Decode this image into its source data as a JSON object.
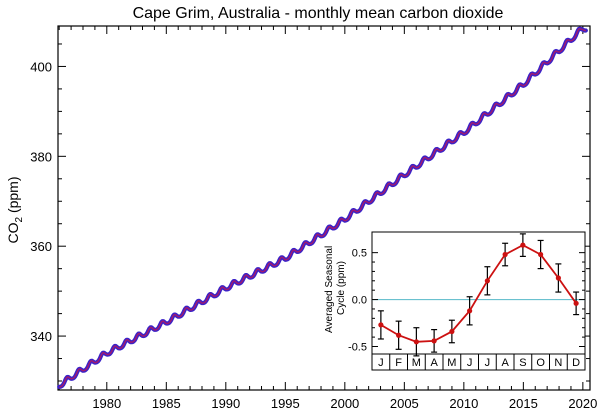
{
  "chart_data": {
    "type": "line",
    "title": "Cape Grim, Australia - monthly mean carbon dioxide",
    "ylabel": {
      "main": "CO",
      "sub": "2",
      "unit": " (ppm)"
    },
    "xlabel": "",
    "xlim": [
      1975.9,
      2020.6
    ],
    "ylim": [
      328,
      409
    ],
    "x_ticks": [
      1980,
      1985,
      1990,
      1995,
      2000,
      2005,
      2010,
      2015,
      2020
    ],
    "y_ticks": [
      340,
      360,
      380,
      400
    ],
    "grid": false,
    "colors": {
      "line_outer": "#3a22c8",
      "line_inner": "#a21a6e",
      "axis": "#000000"
    },
    "trend_anchors": {
      "x": [
        1976.0,
        1980.0,
        1985.0,
        1990.0,
        1995.0,
        2000.0,
        2005.0,
        2010.0,
        2015.0,
        2020.0
      ],
      "y": [
        329.0,
        336.2,
        343.1,
        350.7,
        357.3,
        366.0,
        375.9,
        385.3,
        396.0,
        408.5
      ]
    },
    "inset": {
      "type": "line",
      "ylabel_lines": [
        "Averaged Seasonal",
        "Cycle (ppm)"
      ],
      "months": [
        "J",
        "F",
        "M",
        "A",
        "M",
        "J",
        "J",
        "A",
        "S",
        "O",
        "N",
        "D"
      ],
      "values": [
        -0.27,
        -0.38,
        -0.45,
        -0.44,
        -0.34,
        -0.12,
        0.2,
        0.48,
        0.58,
        0.48,
        0.23,
        -0.04
      ],
      "errors": [
        0.15,
        0.15,
        0.15,
        0.12,
        0.12,
        0.15,
        0.15,
        0.12,
        0.12,
        0.15,
        0.15,
        0.12
      ],
      "ylim": [
        -0.58,
        0.72
      ],
      "y_ticks": [
        0.5,
        0.0,
        -0.5
      ],
      "y_tick_labels": [
        "0.5",
        "0.0",
        "-0.5"
      ],
      "zero_line": true,
      "colors": {
        "line": "#cc1111",
        "point": "#cc1111",
        "zero": "#55b8c8",
        "error": "#000000"
      }
    }
  }
}
